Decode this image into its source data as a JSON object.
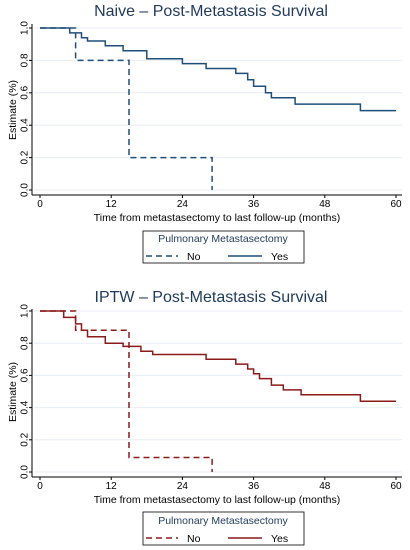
{
  "chart_data": [
    {
      "type": "line",
      "title": "Naive – Post-Metastasis Survival",
      "xlabel": "Time from metastasectomy to last follow-up (months)",
      "ylabel": "Estimate (%)",
      "xlim": [
        0,
        60
      ],
      "ylim": [
        0,
        1
      ],
      "xticks": [
        "0",
        "12",
        "24",
        "36",
        "48",
        "60"
      ],
      "yticks": [
        "0.0",
        "0.2",
        "0.4",
        "0.6",
        "0.8",
        "1.0"
      ],
      "grid": true,
      "legend": {
        "title": "Pulmonary Metastasectomy",
        "placement": "bottom"
      },
      "series": [
        {
          "name": "No",
          "style": "dashed",
          "color": "#1f4e79",
          "step_points": [
            [
              0,
              1.0
            ],
            [
              6,
              1.0
            ],
            [
              6,
              0.8
            ],
            [
              15,
              0.8
            ],
            [
              15,
              0.2
            ],
            [
              29,
              0.2
            ],
            [
              29,
              0.0
            ]
          ]
        },
        {
          "name": "Yes",
          "style": "solid",
          "color": "#1f4e79",
          "step_points": [
            [
              0,
              1.0
            ],
            [
              5,
              1.0
            ],
            [
              5,
              0.97
            ],
            [
              7,
              0.97
            ],
            [
              7,
              0.94
            ],
            [
              8,
              0.94
            ],
            [
              8,
              0.92
            ],
            [
              11,
              0.92
            ],
            [
              11,
              0.89
            ],
            [
              14,
              0.89
            ],
            [
              14,
              0.86
            ],
            [
              18,
              0.86
            ],
            [
              18,
              0.81
            ],
            [
              24,
              0.81
            ],
            [
              24,
              0.78
            ],
            [
              28,
              0.78
            ],
            [
              28,
              0.75
            ],
            [
              33,
              0.75
            ],
            [
              33,
              0.72
            ],
            [
              35,
              0.72
            ],
            [
              35,
              0.68
            ],
            [
              36,
              0.68
            ],
            [
              36,
              0.64
            ],
            [
              38,
              0.64
            ],
            [
              38,
              0.6
            ],
            [
              39,
              0.6
            ],
            [
              39,
              0.57
            ],
            [
              43,
              0.57
            ],
            [
              43,
              0.53
            ],
            [
              54,
              0.53
            ],
            [
              54,
              0.49
            ],
            [
              60,
              0.49
            ]
          ]
        }
      ]
    },
    {
      "type": "line",
      "title": "IPTW – Post-Metastasis Survival",
      "xlabel": "Time from metastasectomy to last follow-up (months)",
      "ylabel": "Estimate (%)",
      "xlim": [
        0,
        60
      ],
      "ylim": [
        0,
        1
      ],
      "xticks": [
        "0",
        "12",
        "24",
        "36",
        "48",
        "60"
      ],
      "yticks": [
        "0.0",
        "0.2",
        "0.4",
        "0.6",
        "0.8",
        "1.0"
      ],
      "grid": true,
      "legend": {
        "title": "Pulmonary Metastasectomy",
        "placement": "bottom"
      },
      "series": [
        {
          "name": "No",
          "style": "dashed",
          "color": "#8b1a1a",
          "step_points": [
            [
              0,
              1.0
            ],
            [
              6,
              1.0
            ],
            [
              6,
              0.88
            ],
            [
              15,
              0.88
            ],
            [
              15,
              0.09
            ],
            [
              29,
              0.09
            ],
            [
              29,
              0.0
            ]
          ]
        },
        {
          "name": "Yes",
          "style": "solid",
          "color": "#8b1a1a",
          "step_points": [
            [
              0,
              1.0
            ],
            [
              4,
              1.0
            ],
            [
              4,
              0.96
            ],
            [
              6,
              0.96
            ],
            [
              6,
              0.92
            ],
            [
              7,
              0.92
            ],
            [
              7,
              0.88
            ],
            [
              8,
              0.88
            ],
            [
              8,
              0.84
            ],
            [
              11,
              0.84
            ],
            [
              11,
              0.8
            ],
            [
              14,
              0.8
            ],
            [
              14,
              0.78
            ],
            [
              17,
              0.78
            ],
            [
              17,
              0.75
            ],
            [
              19,
              0.75
            ],
            [
              19,
              0.73
            ],
            [
              28,
              0.73
            ],
            [
              28,
              0.7
            ],
            [
              33,
              0.7
            ],
            [
              33,
              0.67
            ],
            [
              35,
              0.67
            ],
            [
              35,
              0.64
            ],
            [
              36,
              0.64
            ],
            [
              36,
              0.61
            ],
            [
              37,
              0.61
            ],
            [
              37,
              0.58
            ],
            [
              39,
              0.58
            ],
            [
              39,
              0.54
            ],
            [
              41,
              0.54
            ],
            [
              41,
              0.51
            ],
            [
              44,
              0.51
            ],
            [
              44,
              0.48
            ],
            [
              54,
              0.48
            ],
            [
              54,
              0.44
            ],
            [
              60,
              0.44
            ]
          ]
        }
      ]
    }
  ]
}
